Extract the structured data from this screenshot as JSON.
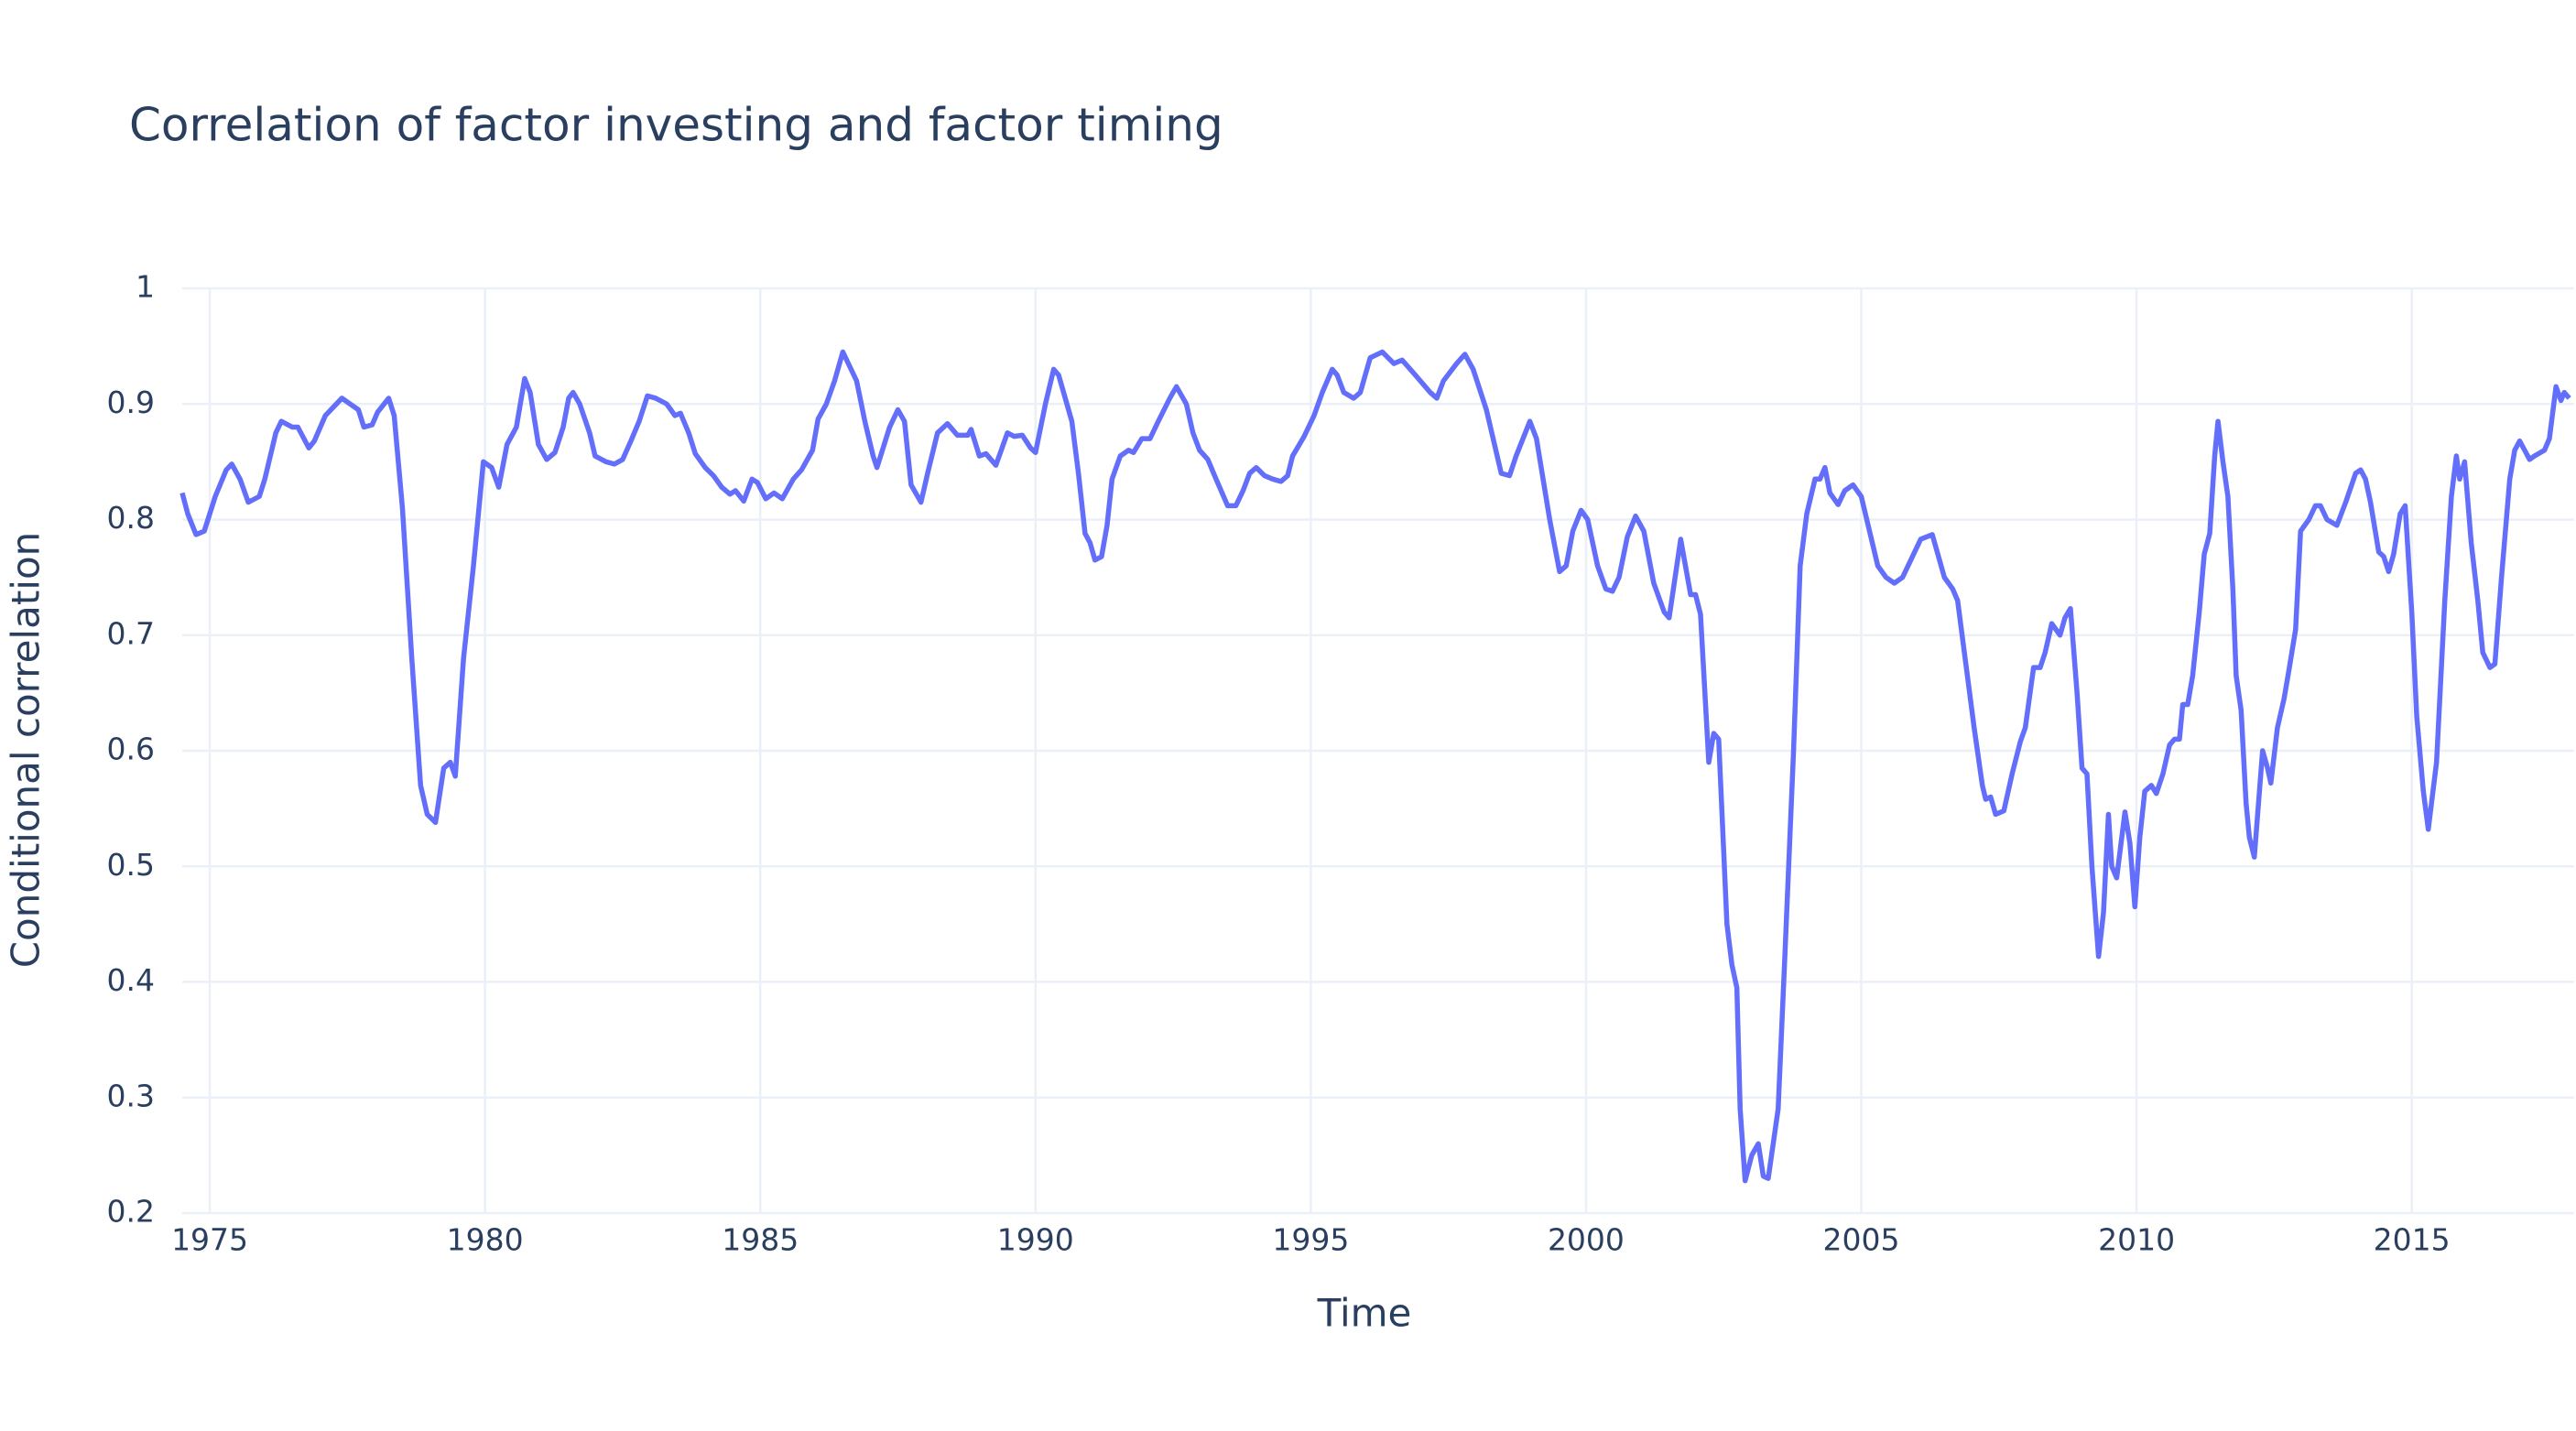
{
  "chart_data": {
    "type": "line",
    "title": "Correlation of factor investing and factor timing",
    "x_label": "Time",
    "y_label": "Conditional correlation",
    "color": "#636efa",
    "grid": true,
    "xlim": [
      1974.5,
      2017.95
    ],
    "ylim": [
      0.2,
      1
    ],
    "xticks": [
      1975,
      1980,
      1985,
      1990,
      1995,
      2000,
      2005,
      2010,
      2015
    ],
    "yticks": [
      0.2,
      0.3,
      0.4,
      0.5,
      0.6,
      0.7,
      0.8,
      0.9,
      1
    ],
    "x": [
      1974.5,
      1974.6,
      1974.75,
      1974.9,
      1975.1,
      1975.3,
      1975.4,
      1975.55,
      1975.7,
      1975.9,
      1976.0,
      1976.2,
      1976.3,
      1976.5,
      1976.6,
      1976.8,
      1976.9,
      1977.1,
      1977.2,
      1977.4,
      1977.55,
      1977.7,
      1977.8,
      1977.95,
      1978.05,
      1978.25,
      1978.35,
      1978.5,
      1978.67,
      1978.83,
      1978.95,
      1979.1,
      1979.25,
      1979.37,
      1979.46,
      1979.61,
      1979.79,
      1979.97,
      1980.12,
      1980.25,
      1980.4,
      1980.57,
      1980.72,
      1980.82,
      1980.97,
      1981.12,
      1981.27,
      1981.42,
      1981.52,
      1981.6,
      1981.72,
      1981.9,
      1982.0,
      1982.2,
      1982.35,
      1982.5,
      1982.65,
      1982.8,
      1982.95,
      1983.1,
      1983.3,
      1983.45,
      1983.55,
      1983.7,
      1983.82,
      1984.0,
      1984.15,
      1984.3,
      1984.45,
      1984.55,
      1984.7,
      1984.85,
      1984.95,
      1985.1,
      1985.25,
      1985.4,
      1985.6,
      1985.75,
      1985.95,
      1986.05,
      1986.2,
      1986.35,
      1986.5,
      1986.6,
      1986.75,
      1986.9,
      1987.05,
      1987.12,
      1987.35,
      1987.5,
      1987.62,
      1987.74,
      1987.92,
      1988.04,
      1988.22,
      1988.4,
      1988.58,
      1988.77,
      1988.83,
      1988.98,
      1989.1,
      1989.28,
      1989.49,
      1989.61,
      1989.76,
      1989.91,
      1990.0,
      1990.18,
      1990.33,
      1990.42,
      1990.66,
      1990.78,
      1990.9,
      1990.99,
      1991.08,
      1991.2,
      1991.3,
      1991.39,
      1991.54,
      1991.69,
      1991.78,
      1991.93,
      1992.08,
      1992.23,
      1992.44,
      1992.56,
      1992.74,
      1992.86,
      1992.98,
      1993.13,
      1993.28,
      1993.49,
      1993.64,
      1993.77,
      1993.89,
      1994.01,
      1994.16,
      1994.31,
      1994.46,
      1994.58,
      1994.67,
      1994.88,
      1995.06,
      1995.21,
      1995.39,
      1995.48,
      1995.6,
      1995.78,
      1995.9,
      1996.08,
      1996.3,
      1996.51,
      1996.66,
      1996.9,
      1997.17,
      1997.29,
      1997.41,
      1997.65,
      1997.8,
      1997.95,
      1998.19,
      1998.46,
      1998.61,
      1998.73,
      1998.98,
      1999.1,
      1999.34,
      1999.52,
      1999.64,
      1999.76,
      1999.91,
      2000.03,
      2000.21,
      2000.36,
      2000.48,
      2000.6,
      2000.75,
      2000.9,
      2001.05,
      2001.23,
      2001.42,
      2001.51,
      2001.72,
      2001.9,
      2001.99,
      2002.08,
      2002.23,
      2002.32,
      2002.41,
      2002.56,
      2002.65,
      2002.74,
      2002.8,
      2002.89,
      2003.01,
      2003.13,
      2003.22,
      2003.31,
      2003.49,
      2003.61,
      2003.77,
      2003.89,
      2004.01,
      2004.16,
      2004.25,
      2004.34,
      2004.43,
      2004.58,
      2004.7,
      2004.85,
      2005.0,
      2005.15,
      2005.3,
      2005.45,
      2005.6,
      2005.75,
      2005.9,
      2006.08,
      2006.29,
      2006.51,
      2006.66,
      2006.75,
      2006.9,
      2007.05,
      2007.2,
      2007.26,
      2007.35,
      2007.44,
      2007.59,
      2007.74,
      2007.89,
      2007.98,
      2008.13,
      2008.25,
      2008.34,
      2008.46,
      2008.61,
      2008.7,
      2008.8,
      2008.92,
      2009.01,
      2009.1,
      2009.19,
      2009.31,
      2009.4,
      2009.49,
      2009.55,
      2009.64,
      2009.79,
      2009.88,
      2009.97,
      2010.06,
      2010.15,
      2010.27,
      2010.36,
      2010.48,
      2010.6,
      2010.69,
      2010.78,
      2010.84,
      2010.93,
      2011.02,
      2011.14,
      2011.23,
      2011.33,
      2011.42,
      2011.48,
      2011.57,
      2011.66,
      2011.75,
      2011.81,
      2011.9,
      2011.99,
      2012.05,
      2012.14,
      2012.29,
      2012.38,
      2012.44,
      2012.56,
      2012.68,
      2012.77,
      2012.89,
      2012.98,
      2013.13,
      2013.25,
      2013.34,
      2013.46,
      2013.64,
      2013.8,
      2013.98,
      2014.07,
      2014.16,
      2014.25,
      2014.4,
      2014.49,
      2014.58,
      2014.67,
      2014.79,
      2014.88,
      2015.0,
      2015.09,
      2015.21,
      2015.3,
      2015.45,
      2015.6,
      2015.72,
      2015.81,
      2015.87,
      2015.96,
      2016.08,
      2016.2,
      2016.29,
      2016.42,
      2016.51,
      2016.63,
      2016.78,
      2016.87,
      2016.96,
      2017.05,
      2017.14,
      2017.23,
      2017.41,
      2017.5,
      2017.62,
      2017.71,
      2017.77,
      2017.86
    ],
    "values": [
      0.823,
      0.805,
      0.787,
      0.79,
      0.82,
      0.843,
      0.848,
      0.835,
      0.815,
      0.82,
      0.835,
      0.875,
      0.885,
      0.88,
      0.88,
      0.862,
      0.868,
      0.89,
      0.895,
      0.905,
      0.9,
      0.895,
      0.88,
      0.882,
      0.893,
      0.905,
      0.89,
      0.81,
      0.68,
      0.57,
      0.545,
      0.538,
      0.585,
      0.59,
      0.578,
      0.68,
      0.76,
      0.85,
      0.845,
      0.828,
      0.865,
      0.88,
      0.922,
      0.91,
      0.865,
      0.852,
      0.858,
      0.88,
      0.905,
      0.91,
      0.9,
      0.875,
      0.855,
      0.85,
      0.848,
      0.852,
      0.868,
      0.885,
      0.907,
      0.905,
      0.9,
      0.89,
      0.892,
      0.875,
      0.857,
      0.845,
      0.838,
      0.828,
      0.822,
      0.825,
      0.816,
      0.835,
      0.832,
      0.818,
      0.823,
      0.818,
      0.835,
      0.843,
      0.86,
      0.887,
      0.9,
      0.92,
      0.945,
      0.935,
      0.92,
      0.885,
      0.855,
      0.845,
      0.88,
      0.895,
      0.885,
      0.83,
      0.815,
      0.84,
      0.875,
      0.883,
      0.873,
      0.873,
      0.878,
      0.855,
      0.857,
      0.847,
      0.875,
      0.872,
      0.873,
      0.862,
      0.858,
      0.9,
      0.93,
      0.925,
      0.885,
      0.84,
      0.788,
      0.78,
      0.765,
      0.768,
      0.795,
      0.835,
      0.855,
      0.86,
      0.858,
      0.87,
      0.87,
      0.885,
      0.905,
      0.915,
      0.9,
      0.875,
      0.86,
      0.852,
      0.835,
      0.812,
      0.812,
      0.825,
      0.84,
      0.845,
      0.838,
      0.835,
      0.833,
      0.838,
      0.855,
      0.872,
      0.89,
      0.91,
      0.93,
      0.925,
      0.91,
      0.905,
      0.91,
      0.94,
      0.945,
      0.935,
      0.938,
      0.925,
      0.91,
      0.905,
      0.92,
      0.935,
      0.943,
      0.93,
      0.895,
      0.84,
      0.838,
      0.855,
      0.885,
      0.87,
      0.8,
      0.755,
      0.76,
      0.79,
      0.808,
      0.8,
      0.76,
      0.74,
      0.738,
      0.75,
      0.785,
      0.803,
      0.79,
      0.745,
      0.72,
      0.715,
      0.783,
      0.735,
      0.735,
      0.718,
      0.59,
      0.615,
      0.61,
      0.45,
      0.415,
      0.395,
      0.29,
      0.228,
      0.25,
      0.26,
      0.232,
      0.23,
      0.29,
      0.42,
      0.6,
      0.76,
      0.805,
      0.835,
      0.835,
      0.845,
      0.823,
      0.813,
      0.825,
      0.83,
      0.82,
      0.79,
      0.76,
      0.75,
      0.745,
      0.75,
      0.765,
      0.783,
      0.787,
      0.75,
      0.74,
      0.73,
      0.675,
      0.62,
      0.57,
      0.558,
      0.56,
      0.545,
      0.548,
      0.58,
      0.608,
      0.62,
      0.672,
      0.672,
      0.685,
      0.71,
      0.7,
      0.715,
      0.723,
      0.65,
      0.585,
      0.58,
      0.5,
      0.422,
      0.46,
      0.545,
      0.5,
      0.49,
      0.547,
      0.52,
      0.465,
      0.525,
      0.565,
      0.57,
      0.563,
      0.58,
      0.605,
      0.61,
      0.61,
      0.64,
      0.64,
      0.665,
      0.72,
      0.77,
      0.788,
      0.855,
      0.885,
      0.85,
      0.82,
      0.74,
      0.665,
      0.635,
      0.555,
      0.525,
      0.508,
      0.6,
      0.585,
      0.572,
      0.62,
      0.645,
      0.67,
      0.705,
      0.79,
      0.8,
      0.812,
      0.812,
      0.8,
      0.795,
      0.815,
      0.84,
      0.843,
      0.835,
      0.815,
      0.772,
      0.768,
      0.755,
      0.77,
      0.805,
      0.812,
      0.72,
      0.63,
      0.565,
      0.532,
      0.59,
      0.73,
      0.82,
      0.855,
      0.835,
      0.85,
      0.78,
      0.73,
      0.685,
      0.672,
      0.675,
      0.75,
      0.835,
      0.86,
      0.868,
      0.86,
      0.852,
      0.855,
      0.86,
      0.87,
      0.915,
      0.903,
      0.91,
      0.905
    ]
  }
}
